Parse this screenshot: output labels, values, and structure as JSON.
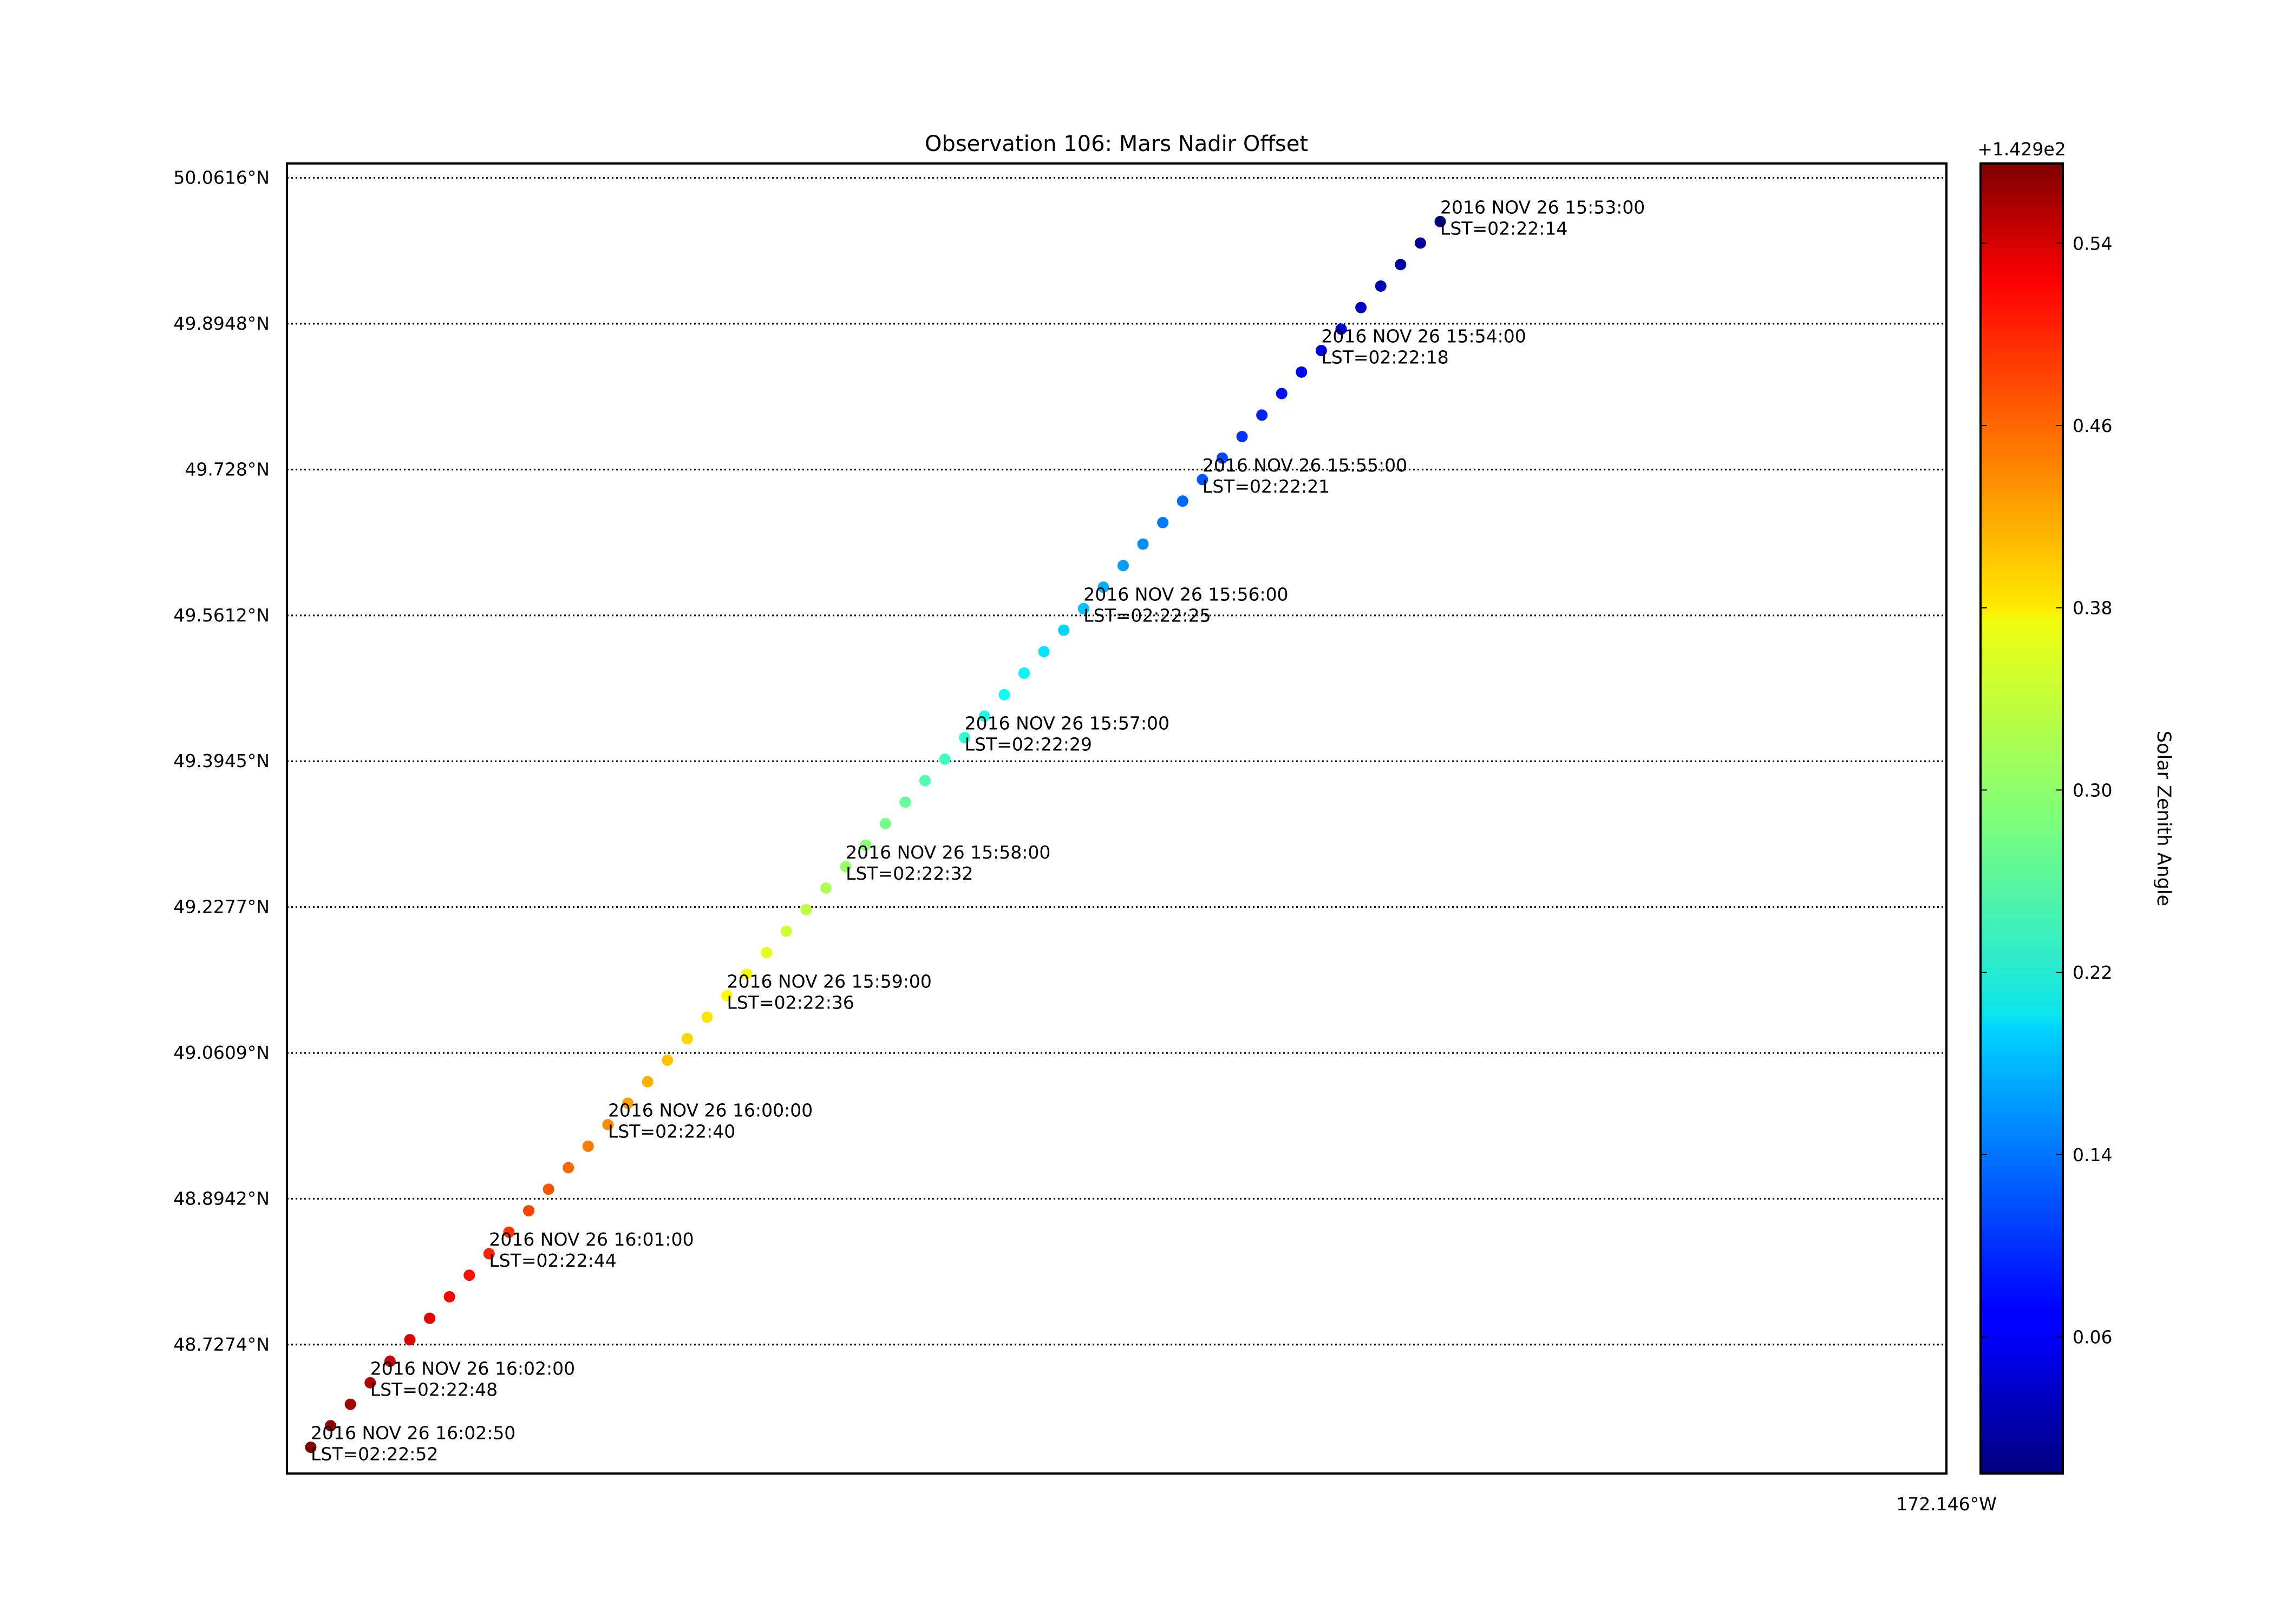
{
  "chart_data": {
    "type": "scatter",
    "title": "Observation 106: Mars Nadir Offset",
    "ylim_labels": [
      "48.7274°N",
      "48.8942°N",
      "49.0609°N",
      "49.2277°N",
      "49.3945°N",
      "49.5612°N",
      "49.728°N",
      "49.8948°N",
      "50.0616°N"
    ],
    "y_tick_values": [
      48.7274,
      48.8942,
      49.0609,
      49.2277,
      49.3945,
      49.5612,
      49.728,
      49.8948,
      50.0616
    ],
    "y_range": [
      48.58,
      50.078
    ],
    "x_tick_label": "172.146°W",
    "grid": "horizontal dotted",
    "colorbar": {
      "label": "Solar Zenith Angle",
      "offset_label": "+1.429e2",
      "ticks": [
        0.06,
        0.14,
        0.22,
        0.3,
        0.38,
        0.46,
        0.54
      ],
      "tick_labels": [
        "0.06",
        "0.14",
        "0.22",
        "0.30",
        "0.38",
        "0.46",
        "0.54"
      ],
      "range": [
        0.0,
        0.575
      ],
      "colormap": "jet"
    },
    "points": {
      "count": 58,
      "lat_start": 50.0116,
      "lat_end": 48.61,
      "sza_start": 0.0,
      "sza_end": 0.575
    },
    "annotations": [
      {
        "time": "2016 NOV 26 15:53:00",
        "lst": "LST=02:22:14",
        "index": 0
      },
      {
        "time": "2016 NOV 26 15:54:00",
        "lst": "LST=02:22:18",
        "index": 6
      },
      {
        "time": "2016 NOV 26 15:55:00",
        "lst": "LST=02:22:21",
        "index": 12
      },
      {
        "time": "2016 NOV 26 15:56:00",
        "lst": "LST=02:22:25",
        "index": 18
      },
      {
        "time": "2016 NOV 26 15:57:00",
        "lst": "LST=02:22:29",
        "index": 24
      },
      {
        "time": "2016 NOV 26 15:58:00",
        "lst": "LST=02:22:32",
        "index": 30
      },
      {
        "time": "2016 NOV 26 15:59:00",
        "lst": "LST=02:22:36",
        "index": 36
      },
      {
        "time": "2016 NOV 26 16:00:00",
        "lst": "LST=02:22:40",
        "index": 42
      },
      {
        "time": "2016 NOV 26 16:01:00",
        "lst": "LST=02:22:44",
        "index": 48
      },
      {
        "time": "2016 NOV 26 16:02:00",
        "lst": "LST=02:22:48",
        "index": 54
      },
      {
        "time": "2016 NOV 26 16:02:50",
        "lst": "LST=02:22:52",
        "index": 57
      }
    ]
  }
}
